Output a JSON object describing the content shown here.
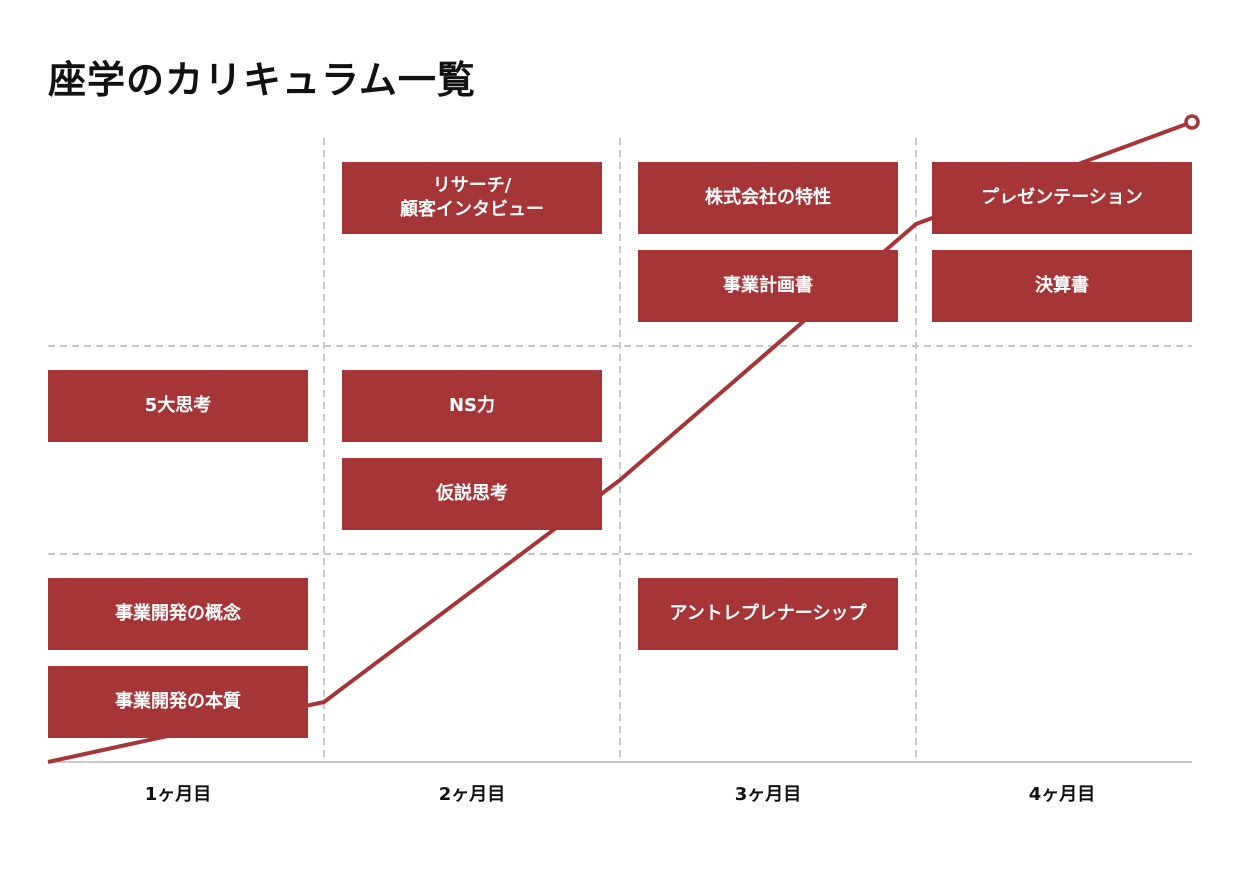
{
  "title": "座学のカリキュラム一覧",
  "colors": {
    "accent": "#a63538",
    "grid": "#c8c8c8",
    "axis": "#c8c8c8"
  },
  "months": [
    "1ヶ月目",
    "2ヶ月目",
    "3ヶ月目",
    "4ヶ月目"
  ],
  "items": [
    {
      "label": "リサーチ/\n顧客インタビュー",
      "month": 2,
      "level": 3,
      "slot": 1
    },
    {
      "label": "株式会社の特性",
      "month": 3,
      "level": 3,
      "slot": 1
    },
    {
      "label": "事業計画書",
      "month": 3,
      "level": 3,
      "slot": 2
    },
    {
      "label": "プレゼンテーション",
      "month": 4,
      "level": 3,
      "slot": 1
    },
    {
      "label": "決算書",
      "month": 4,
      "level": 3,
      "slot": 2
    },
    {
      "label": "5大思考",
      "month": 1,
      "level": 2,
      "slot": 1
    },
    {
      "label": "NS力",
      "month": 2,
      "level": 2,
      "slot": 1
    },
    {
      "label": "仮説思考",
      "month": 2,
      "level": 2,
      "slot": 2
    },
    {
      "label": "事業開発の概念",
      "month": 1,
      "level": 1,
      "slot": 1
    },
    {
      "label": "事業開発の本質",
      "month": 1,
      "level": 1,
      "slot": 2
    },
    {
      "label": "アントレプレナーシップ",
      "month": 3,
      "level": 1,
      "slot": 1
    }
  ],
  "growth_line": {
    "has_end_marker": true
  }
}
